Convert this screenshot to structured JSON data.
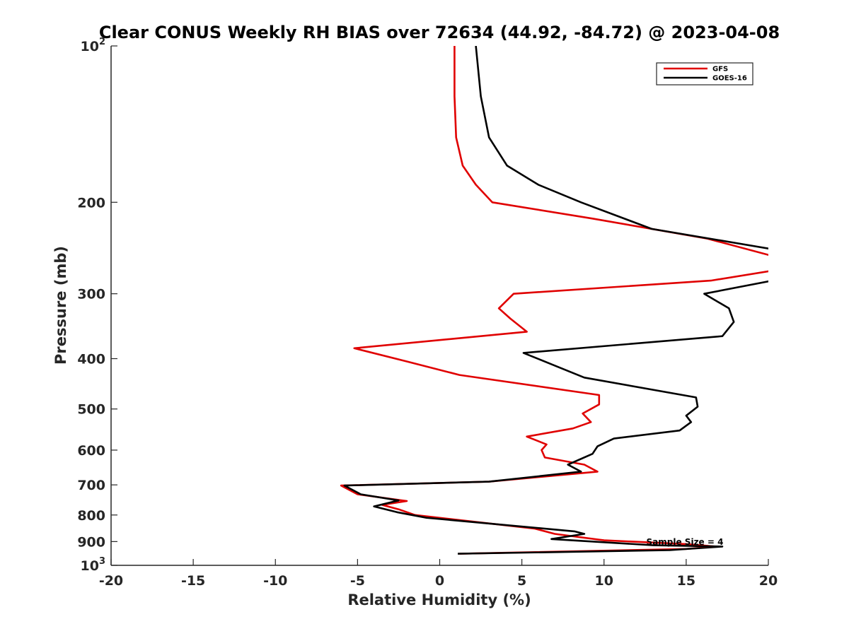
{
  "chart_data": {
    "type": "line",
    "title": "Clear CONUS Weekly RH BIAS over 72634 (44.92, -84.72) @ 2023-04-08",
    "xlabel": "Relative Humidity (%)",
    "ylabel": "Pressure (mb)",
    "xlim": [
      -20,
      20
    ],
    "ylim": [
      100,
      1000
    ],
    "yscale": "log",
    "y_reversed": true,
    "grid": false,
    "x_ticks": [
      "-20",
      "-15",
      "-10",
      "-5",
      "0",
      "5",
      "10",
      "15",
      "20"
    ],
    "y_ticks": [
      {
        "value": 100,
        "base": "10",
        "exp": "2"
      },
      {
        "value": 200,
        "label": "200"
      },
      {
        "value": 300,
        "label": "300"
      },
      {
        "value": 400,
        "label": "400"
      },
      {
        "value": 500,
        "label": "500"
      },
      {
        "value": 600,
        "label": "600"
      },
      {
        "value": 700,
        "label": "700"
      },
      {
        "value": 800,
        "label": "800"
      },
      {
        "value": 900,
        "label": "900"
      },
      {
        "value": 1000,
        "base": "10",
        "exp": "3"
      }
    ],
    "legend": {
      "location": "top-right",
      "entries": [
        "GFS",
        "GOES-16"
      ]
    },
    "annotation": "Sample Size = 4",
    "series": [
      {
        "name": "GFS",
        "color": "#e00000",
        "points": [
          [
            0.9,
            100
          ],
          [
            0.9,
            125
          ],
          [
            1.0,
            150
          ],
          [
            1.4,
            170
          ],
          [
            2.2,
            185
          ],
          [
            3.2,
            200
          ],
          [
            9.3,
            215
          ],
          [
            16.3,
            235
          ],
          [
            20.5,
            255
          ],
          [
            20.5,
            270
          ],
          [
            16.5,
            283
          ],
          [
            4.5,
            300
          ],
          [
            3.6,
            320
          ],
          [
            4.3,
            335
          ],
          [
            5.3,
            355
          ],
          [
            -5.2,
            382
          ],
          [
            -2.0,
            405
          ],
          [
            1.2,
            430
          ],
          [
            9.7,
            470
          ],
          [
            9.7,
            490
          ],
          [
            8.7,
            510
          ],
          [
            9.2,
            530
          ],
          [
            8.1,
            545
          ],
          [
            5.3,
            565
          ],
          [
            6.5,
            585
          ],
          [
            6.2,
            600
          ],
          [
            6.4,
            620
          ],
          [
            8.8,
            640
          ],
          [
            9.6,
            660
          ],
          [
            3.0,
            690
          ],
          [
            -6.0,
            702
          ],
          [
            -5.0,
            730
          ],
          [
            -2.0,
            752
          ],
          [
            -3.5,
            765
          ],
          [
            -2.5,
            780
          ],
          [
            -1.5,
            800
          ],
          [
            5.8,
            850
          ],
          [
            7.0,
            870
          ],
          [
            10.0,
            895
          ],
          [
            15.0,
            910
          ],
          [
            16.8,
            920
          ],
          [
            15.0,
            930
          ],
          [
            1.2,
            950
          ]
        ]
      },
      {
        "name": "GOES-16",
        "color": "#000000",
        "points": [
          [
            2.2,
            100
          ],
          [
            2.5,
            125
          ],
          [
            3.0,
            150
          ],
          [
            4.1,
            170
          ],
          [
            6.0,
            185
          ],
          [
            8.6,
            200
          ],
          [
            12.9,
            225
          ],
          [
            20.5,
            247
          ],
          [
            20.5,
            282
          ],
          [
            16.1,
            300
          ],
          [
            17.6,
            320
          ],
          [
            17.9,
            340
          ],
          [
            17.2,
            362
          ],
          [
            5.1,
            390
          ],
          [
            6.8,
            410
          ],
          [
            8.8,
            435
          ],
          [
            15.6,
            475
          ],
          [
            15.7,
            495
          ],
          [
            15.0,
            515
          ],
          [
            15.3,
            530
          ],
          [
            14.6,
            550
          ],
          [
            10.6,
            570
          ],
          [
            9.6,
            590
          ],
          [
            9.3,
            610
          ],
          [
            7.8,
            640
          ],
          [
            8.6,
            660
          ],
          [
            3.0,
            690
          ],
          [
            -5.8,
            702
          ],
          [
            -4.8,
            730
          ],
          [
            -2.5,
            750
          ],
          [
            -4.0,
            770
          ],
          [
            -2.6,
            790
          ],
          [
            -0.8,
            810
          ],
          [
            8.2,
            860
          ],
          [
            8.8,
            870
          ],
          [
            6.8,
            890
          ],
          [
            13.0,
            915
          ],
          [
            17.2,
            920
          ],
          [
            14.0,
            935
          ],
          [
            1.1,
            950
          ]
        ]
      }
    ]
  }
}
